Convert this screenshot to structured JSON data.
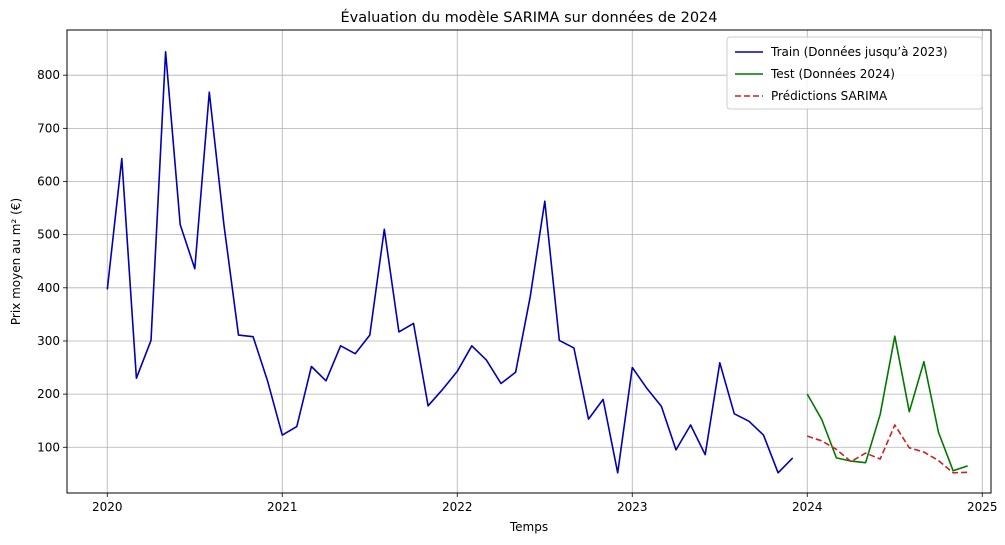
{
  "chart_data": {
    "type": "line",
    "title": "Évaluation du modèle SARIMA sur données de 2024",
    "xlabel": "Temps",
    "ylabel": "Prix moyen au m² (€)",
    "xlim": [
      2019.77,
      2025.05
    ],
    "ylim": [
      14,
      885
    ],
    "x_ticks": [
      2020,
      2021,
      2022,
      2023,
      2024,
      2025
    ],
    "x_tick_labels": [
      "2020",
      "2021",
      "2022",
      "2023",
      "2024",
      "2025"
    ],
    "y_ticks": [
      100,
      200,
      300,
      400,
      500,
      600,
      700,
      800
    ],
    "y_tick_labels": [
      "100",
      "200",
      "300",
      "400",
      "500",
      "600",
      "700",
      "800"
    ],
    "grid": true,
    "legend_position": "top-right",
    "series": [
      {
        "name": "Train (Données jusqu’à 2023)",
        "color": "#0000b4",
        "style": "solid",
        "start": "2020-01",
        "values": [
          397,
          643,
          230,
          301,
          844,
          519,
          436,
          768,
          519,
          311,
          308,
          224,
          123,
          139,
          252,
          225,
          291,
          276,
          311,
          510,
          317,
          333,
          178,
          209,
          243,
          291,
          264,
          220,
          241,
          383,
          563,
          301,
          287,
          153,
          190,
          52,
          250,
          211,
          177,
          95,
          142,
          86,
          259,
          163,
          149,
          123,
          52,
          80
        ]
      },
      {
        "name": "Test (Données 2024)",
        "color": "#007800",
        "style": "solid",
        "start": "2024-01",
        "values": [
          200,
          152,
          80,
          74,
          71,
          162,
          309,
          167,
          261,
          128,
          56,
          65
        ]
      },
      {
        "name": "Prédictions SARIMA",
        "color": "#cc2222",
        "style": "dashed",
        "start": "2024-01",
        "values": [
          121,
          112,
          96,
          73,
          89,
          78,
          142,
          99,
          91,
          75,
          52,
          53
        ]
      }
    ]
  }
}
